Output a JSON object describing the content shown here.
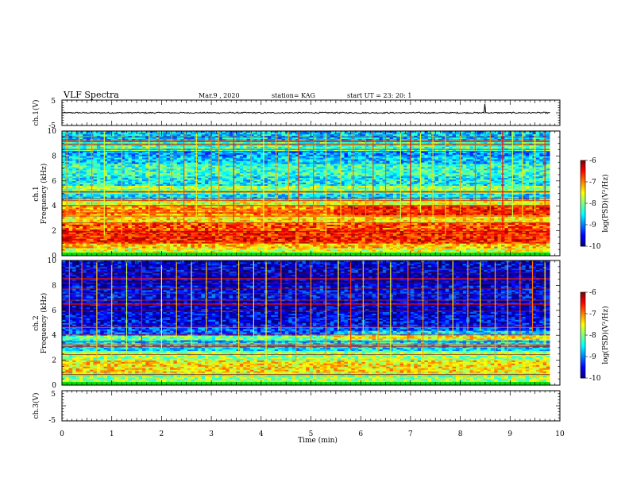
{
  "header": {
    "title": "VLF Spectra",
    "date": "Mar.9 , 2020",
    "station": "station= KAG",
    "start_ut": "start UT =  23: 20: 1"
  },
  "chart_data": [
    {
      "type": "line",
      "name": "ch1-waveform",
      "ylabel": "ch.1(V)",
      "ylim": [
        -5,
        5
      ],
      "yticks": [
        "5",
        "-5"
      ],
      "xlim": [
        0,
        10
      ],
      "series": [
        {
          "x": [
            0,
            2,
            4,
            5.5,
            6.0,
            6.5,
            8.49,
            8.5,
            8.51,
            9.5,
            9.8
          ],
          "y": [
            0,
            0.1,
            -0.2,
            0.2,
            -0.3,
            0.1,
            0,
            3.5,
            0,
            0,
            0
          ]
        }
      ]
    },
    {
      "type": "heatmap",
      "name": "ch1-spectrogram",
      "ylabel": "ch.1\nFrequency (kHz)",
      "ylim": [
        0,
        10
      ],
      "yticks": [
        "0",
        "2",
        "4",
        "6",
        "8",
        "10"
      ],
      "xlim": [
        0,
        9.8
      ],
      "colorbar": {
        "label": "log(PSD)(V²/Hz)",
        "range": [
          -10,
          -6
        ],
        "ticks": [
          "-6",
          "-7",
          "-8",
          "-9",
          "-10"
        ]
      },
      "bands": [
        {
          "f": [
            0.0,
            0.3
          ],
          "level": -8.2
        },
        {
          "f": [
            0.3,
            0.6
          ],
          "level": -7.6
        },
        {
          "f": [
            0.6,
            1.0
          ],
          "level": -7.3
        },
        {
          "f": [
            1.0,
            2.0
          ],
          "level": -6.6
        },
        {
          "f": [
            2.0,
            2.6
          ],
          "level": -6.8
        },
        {
          "f": [
            2.6,
            3.3
          ],
          "level": -7.4
        },
        {
          "f": [
            3.3,
            4.0
          ],
          "level": -7.1
        },
        {
          "f": [
            4.0,
            4.5
          ],
          "level": -7.6
        },
        {
          "f": [
            4.5,
            5.0
          ],
          "level": -8.6
        },
        {
          "f": [
            5.0,
            5.6
          ],
          "level": -7.9
        },
        {
          "f": [
            5.6,
            6.4
          ],
          "level": -8.5
        },
        {
          "f": [
            6.4,
            7.4
          ],
          "level": -8.3
        },
        {
          "f": [
            7.4,
            8.0
          ],
          "level": -8.7
        },
        {
          "f": [
            8.0,
            8.4
          ],
          "level": -8.9
        },
        {
          "f": [
            8.4,
            9.2
          ],
          "level": -8.2
        },
        {
          "f": [
            9.2,
            10.0
          ],
          "level": -8.7
        }
      ],
      "bursts_min": [
        0.1,
        0.35,
        0.6,
        0.85,
        1.2,
        1.75,
        1.95,
        2.2,
        2.45,
        2.7,
        3.0,
        3.15,
        3.45,
        3.8,
        4.05,
        4.3,
        4.55,
        4.75,
        5.05,
        5.3,
        5.6,
        5.85,
        6.1,
        6.25,
        6.5,
        6.8,
        7.0,
        7.2,
        7.45,
        7.7,
        8.0,
        8.3,
        8.6,
        8.85,
        9.05,
        9.25,
        9.5,
        9.7
      ]
    },
    {
      "type": "heatmap",
      "name": "ch2-spectrogram",
      "ylabel": "ch.2\nFrequency (kHz)",
      "ylim": [
        0,
        10
      ],
      "yticks": [
        "0",
        "2",
        "4",
        "6",
        "8",
        "10"
      ],
      "xlim": [
        0,
        9.8
      ],
      "colorbar": {
        "label": "log(PSD)(V²/Hz)",
        "range": [
          -10,
          -6
        ],
        "ticks": [
          "-6",
          "-7",
          "-8",
          "-9",
          "-10"
        ]
      },
      "bands": [
        {
          "f": [
            0.0,
            0.3
          ],
          "level": -8.3
        },
        {
          "f": [
            0.3,
            1.0
          ],
          "level": -7.9
        },
        {
          "f": [
            1.0,
            2.0
          ],
          "level": -7.4
        },
        {
          "f": [
            2.0,
            2.8
          ],
          "level": -7.9
        },
        {
          "f": [
            2.8,
            3.6
          ],
          "level": -8.6
        },
        {
          "f": [
            3.6,
            4.0
          ],
          "level": -8.1
        },
        {
          "f": [
            4.0,
            4.6
          ],
          "level": -9.2
        },
        {
          "f": [
            4.6,
            5.2
          ],
          "level": -9.5
        },
        {
          "f": [
            5.2,
            6.0
          ],
          "level": -9.6
        },
        {
          "f": [
            6.0,
            7.0
          ],
          "level": -9.7
        },
        {
          "f": [
            7.0,
            8.0
          ],
          "level": -9.5
        },
        {
          "f": [
            8.0,
            9.0
          ],
          "level": -9.8
        },
        {
          "f": [
            9.0,
            10.0
          ],
          "level": -9.6
        }
      ],
      "bursts_min": [
        0.15,
        0.4,
        0.7,
        1.0,
        1.3,
        1.6,
        2.0,
        2.3,
        2.6,
        2.9,
        3.2,
        3.55,
        3.85,
        4.1,
        4.4,
        4.7,
        5.0,
        5.3,
        5.55,
        5.8,
        6.05,
        6.35,
        6.6,
        6.95,
        7.25,
        7.55,
        7.85,
        8.15,
        8.4,
        8.7,
        8.95,
        9.2,
        9.45,
        9.7
      ]
    },
    {
      "type": "line",
      "name": "ch3-waveform",
      "ylabel": "ch.3(V)",
      "ylim": [
        -5,
        5
      ],
      "yticks": [
        "5",
        "-5"
      ],
      "xlim": [
        0,
        10
      ],
      "xlabel": "Time (min)",
      "xticks": [
        "0",
        "1",
        "2",
        "3",
        "4",
        "5",
        "6",
        "7",
        "8",
        "9",
        "10"
      ],
      "series": []
    }
  ]
}
